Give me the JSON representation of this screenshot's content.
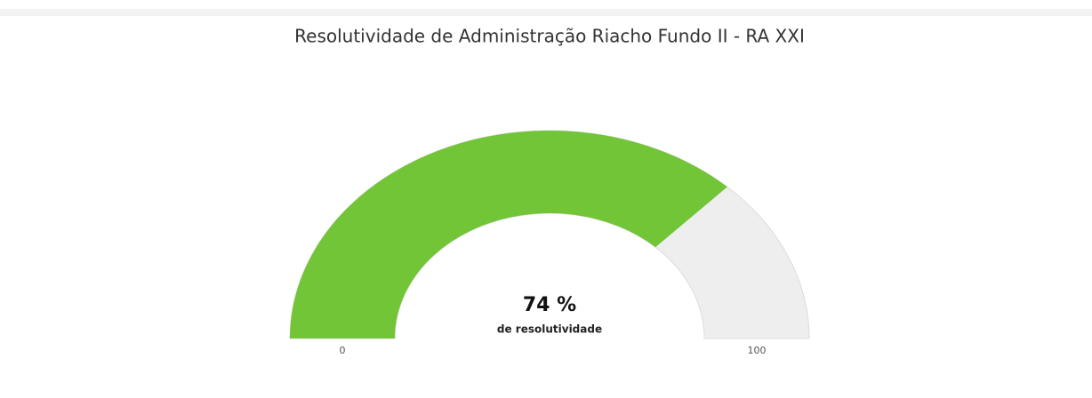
{
  "chart_data": {
    "type": "gauge",
    "title": "Resolutividade de Administração Riacho Fundo II - RA XXI",
    "values": [
      74
    ],
    "value_labels": [
      "74 %"
    ],
    "subtitle": "de resolutividade",
    "ylim": [
      0,
      100
    ],
    "yticks": [
      0,
      100
    ],
    "color": "#72c537",
    "track_color": "#eeeeee"
  }
}
